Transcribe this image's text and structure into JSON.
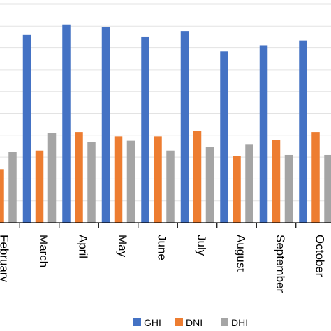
{
  "chart_data": {
    "type": "bar",
    "categories": [
      "February",
      "March",
      "April",
      "May",
      "June",
      "July",
      "August",
      "September",
      "October"
    ],
    "series": [
      {
        "name": "GHI",
        "color": "#4472C4",
        "values": [
          null,
          8.6,
          9.05,
          8.95,
          8.5,
          8.75,
          7.85,
          8.1,
          8.35
        ]
      },
      {
        "name": "DNI",
        "color": "#ED7D31",
        "values": [
          2.45,
          3.3,
          4.15,
          3.95,
          3.95,
          4.2,
          3.05,
          3.8,
          4.15
        ]
      },
      {
        "name": "DHI",
        "color": "#A5A5A5",
        "values": [
          3.25,
          4.1,
          3.7,
          3.75,
          3.3,
          3.45,
          3.6,
          3.1,
          3.1
        ]
      }
    ],
    "ylim": [
      0,
      10
    ],
    "grid": true,
    "legend_position": "bottom-right",
    "title": "",
    "xlabel": "",
    "ylabel": ""
  }
}
